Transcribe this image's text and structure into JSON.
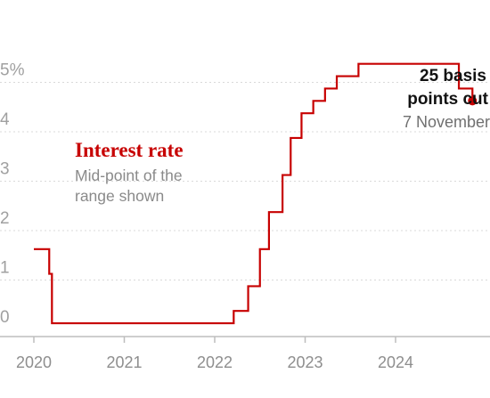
{
  "colors": {
    "series": "#c70000",
    "title": "#c70000",
    "subtitle": "#8a8a8a",
    "grid": "#d9d9d9",
    "axis": "#bdbdbd",
    "annotation": "#121212"
  },
  "chart_data": {
    "type": "line",
    "title": "Interest rate",
    "subtitle": "Mid-point of the range shown",
    "subtitle_lines": [
      "Mid-point of the",
      "range shown"
    ],
    "xlabel": "",
    "ylabel": "",
    "y_ticks": [
      "0",
      "1",
      "2",
      "3",
      "4",
      "5%"
    ],
    "y_tick_values": [
      0,
      1,
      2,
      3,
      4,
      5
    ],
    "x_ticks": [
      "2020",
      "2021",
      "2022",
      "2023",
      "2024"
    ],
    "x_tick_values": [
      2020,
      2021,
      2022,
      2023,
      2024
    ],
    "xlim": [
      2020,
      2024.9
    ],
    "ylim": [
      0,
      5.5
    ],
    "grid": true,
    "step": true,
    "series": [
      {
        "x": [
          2020.0,
          2020.17,
          2020.2,
          2021.0,
          2022.0,
          2022.21,
          2022.37,
          2022.5,
          2022.6,
          2022.75,
          2022.84,
          2022.96,
          2023.09,
          2023.22,
          2023.35,
          2023.59,
          2024.0,
          2024.7,
          2024.85
        ],
        "y": [
          1.625,
          1.125,
          0.125,
          0.125,
          0.125,
          0.375,
          0.875,
          1.625,
          2.375,
          3.125,
          3.875,
          4.375,
          4.625,
          4.875,
          5.125,
          5.375,
          5.375,
          4.875,
          4.625
        ]
      }
    ],
    "annotations": [
      {
        "lines": [
          "25 basis",
          "points cut"
        ],
        "sub": "7 November",
        "at": [
          2024.85,
          4.625
        ]
      }
    ]
  }
}
